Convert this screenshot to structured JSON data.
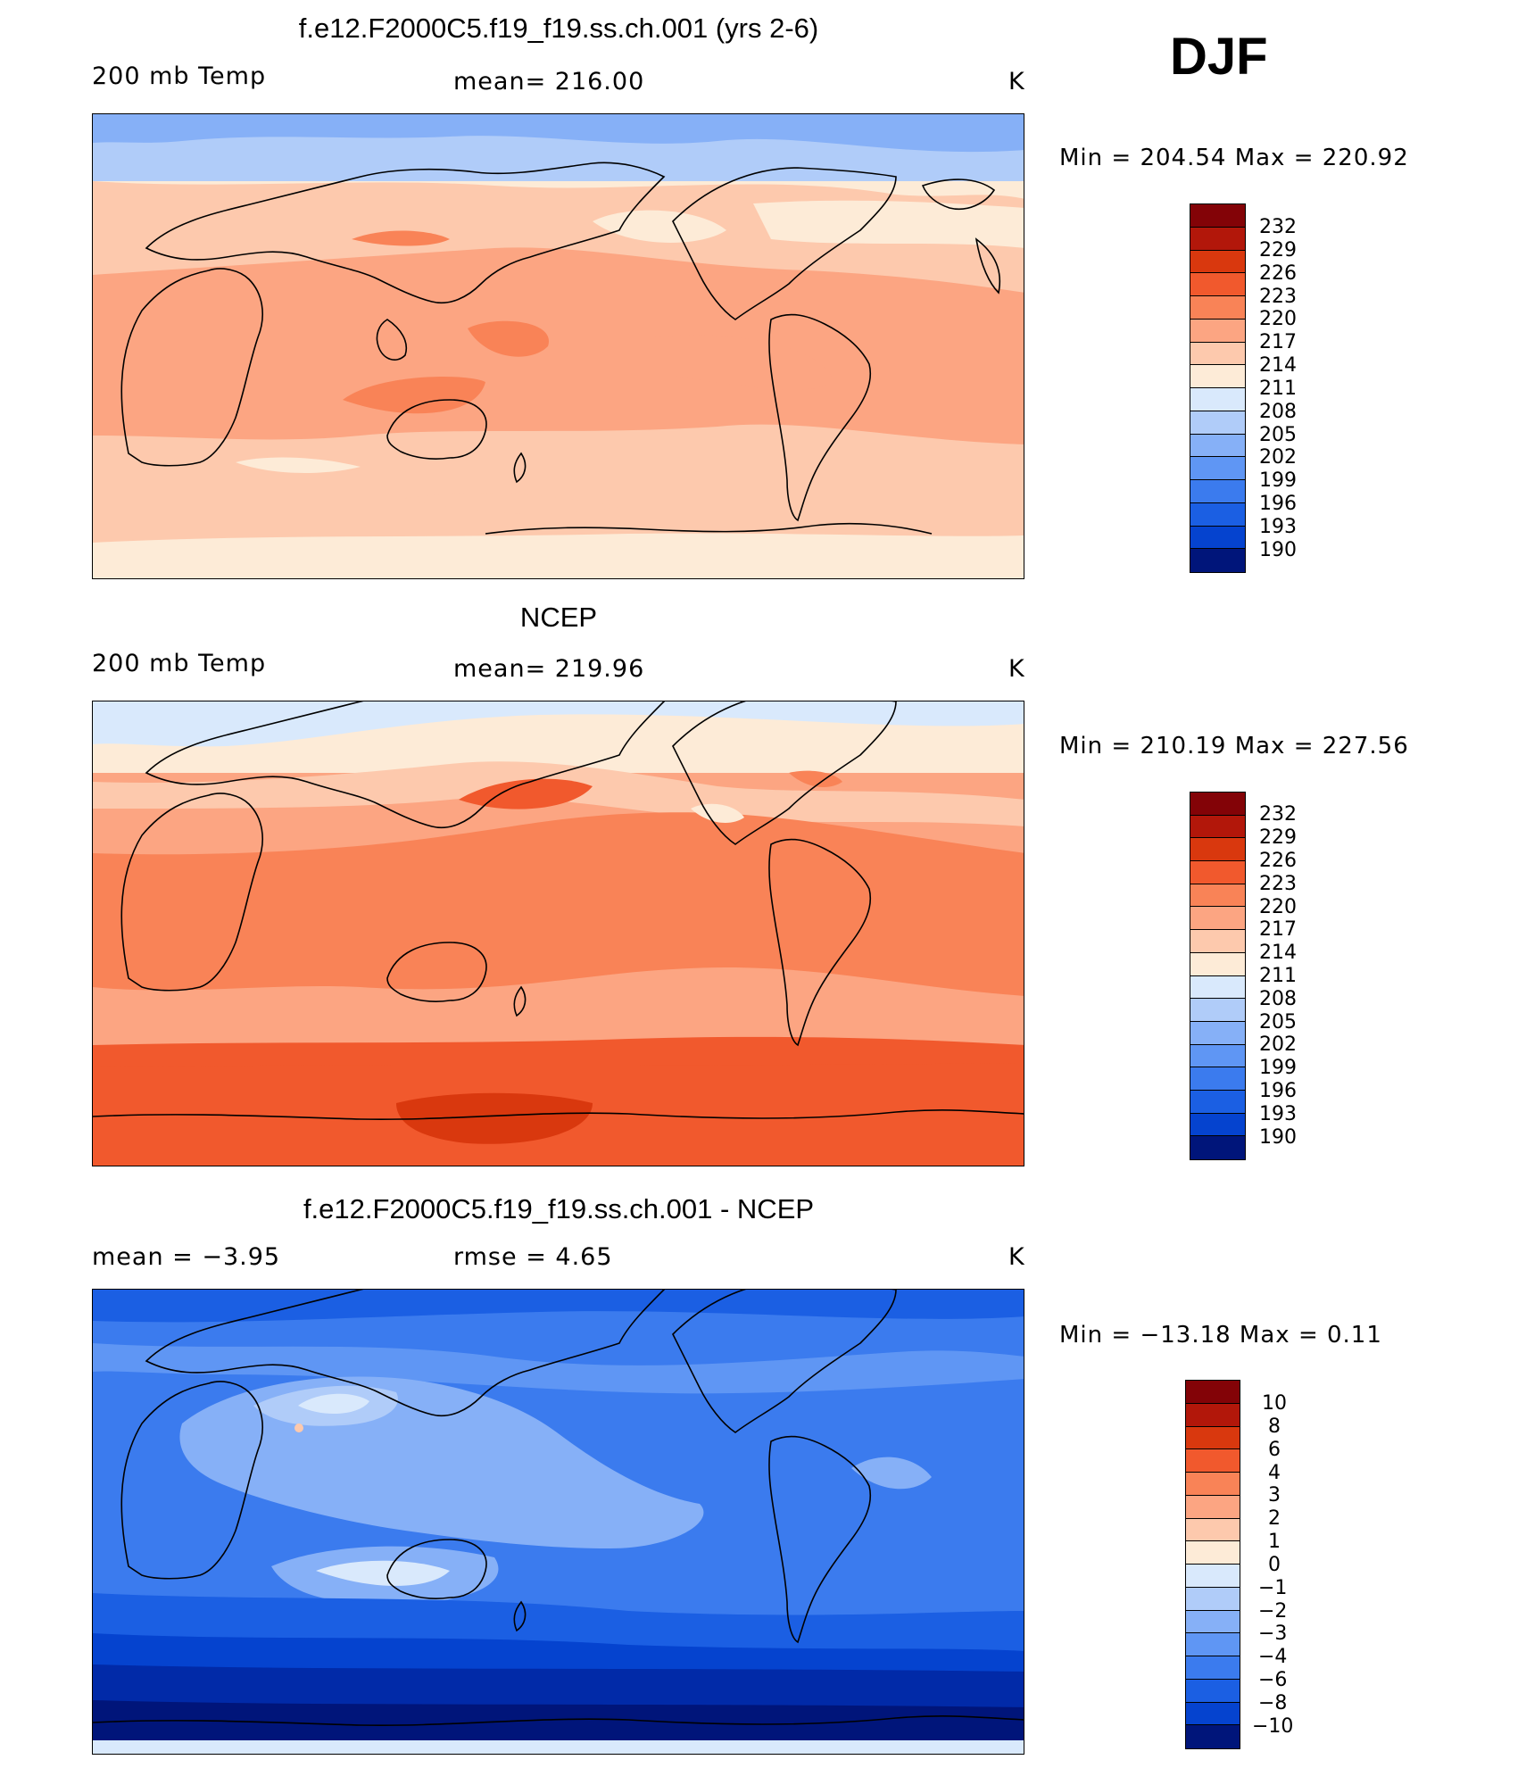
{
  "season": "DJF",
  "colors": {
    "temp_scale": [
      "#00157a",
      "#012aa8",
      "#0543cf",
      "#1b5fe3",
      "#3b7bee",
      "#5f96f4",
      "#86b0f7",
      "#b0ccf9",
      "#d9e9fc",
      "#fdebd7",
      "#fdc9ad",
      "#fca582",
      "#f98357",
      "#f1592d",
      "#d9380e",
      "#b2170a",
      "#830307"
    ],
    "diff_scale": [
      "#00157a",
      "#012aa8",
      "#0543cf",
      "#1b5fe3",
      "#3b7bee",
      "#5f96f4",
      "#86b0f7",
      "#b0ccf9",
      "#d9e9fc",
      "#fdebd7",
      "#fdc9ad",
      "#fca582",
      "#f98357",
      "#f1592d",
      "#d9380e",
      "#b2170a",
      "#830307"
    ]
  },
  "panels": [
    {
      "title": "f.e12.F2000C5.f19_f19.ss.ch.001 (yrs 2-6)",
      "left_label": "200 mb Temp",
      "center_label": "mean=  216.00",
      "units": "K",
      "minmax": "Min  =  204.54  Max  =  220.92",
      "colorbar_labels": [
        "232",
        "229",
        "226",
        "223",
        "220",
        "217",
        "214",
        "211",
        "208",
        "205",
        "202",
        "199",
        "196",
        "193",
        "190"
      ]
    },
    {
      "title": "NCEP",
      "left_label": "200 mb Temp",
      "center_label": "mean=  219.96",
      "units": "K",
      "minmax": "Min  =  210.19  Max  =  227.56",
      "colorbar_labels": [
        "232",
        "229",
        "226",
        "223",
        "220",
        "217",
        "214",
        "211",
        "208",
        "205",
        "202",
        "199",
        "196",
        "193",
        "190"
      ]
    },
    {
      "title": "f.e12.F2000C5.f19_f19.ss.ch.001 - NCEP",
      "left_label": "mean  =     −3.95",
      "center_label": "rmse  =      4.65",
      "units": "K",
      "minmax": "Min  =  −13.18  Max  =     0.11",
      "colorbar_labels": [
        "10",
        "8",
        "6",
        "4",
        "3",
        "2",
        "1",
        "0",
        "−1",
        "−2",
        "−3",
        "−4",
        "−6",
        "−8",
        "−10"
      ]
    }
  ]
}
